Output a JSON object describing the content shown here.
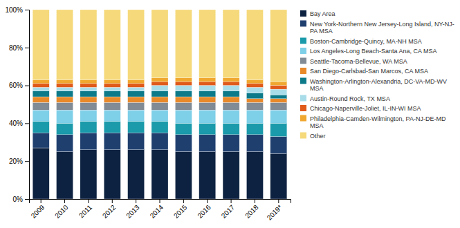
{
  "chart_data": {
    "type": "bar",
    "stacked": true,
    "grid": false,
    "legend": "right",
    "categories": [
      "2009",
      "2010",
      "2011",
      "2012",
      "2013",
      "2014",
      "2015",
      "2016",
      "2017",
      "2018",
      "2019*"
    ],
    "series": [
      {
        "name": "Bay Area",
        "color": "#0d2240",
        "values": [
          0.27,
          0.25,
          0.26,
          0.26,
          0.26,
          0.26,
          0.25,
          0.25,
          0.25,
          0.25,
          0.24
        ]
      },
      {
        "name": "New York-Northern New Jersey-Long Island, NY-NJ-\nPA MSA",
        "color": "#1f3f6e",
        "values": [
          0.08,
          0.09,
          0.09,
          0.09,
          0.09,
          0.09,
          0.09,
          0.09,
          0.09,
          0.09,
          0.09
        ]
      },
      {
        "name": "Boston-Cambridge-Quincy, MA-NH MSA",
        "color": "#1a9aaa",
        "values": [
          0.06,
          0.06,
          0.06,
          0.06,
          0.06,
          0.06,
          0.06,
          0.06,
          0.06,
          0.06,
          0.07
        ]
      },
      {
        "name": "Los Angeles-Long Beach-Santa Ana, CA MSA",
        "color": "#7ecfe8",
        "values": [
          0.06,
          0.07,
          0.06,
          0.06,
          0.06,
          0.06,
          0.07,
          0.07,
          0.07,
          0.07,
          0.07
        ]
      },
      {
        "name": "Seattle-Tacoma-Bellevue, WA MSA",
        "color": "#808b96",
        "values": [
          0.04,
          0.04,
          0.04,
          0.04,
          0.04,
          0.04,
          0.04,
          0.04,
          0.04,
          0.04,
          0.04
        ]
      },
      {
        "name": "San Diego-Carlsbad-San Marcos, CA MSA",
        "color": "#e8892a",
        "values": [
          0.03,
          0.03,
          0.03,
          0.03,
          0.03,
          0.03,
          0.03,
          0.03,
          0.03,
          0.02,
          0.02
        ]
      },
      {
        "name": "Washington-Arlington-Alexandria, DC-VA-MD-WV\nMSA",
        "color": "#0d7a8a",
        "values": [
          0.03,
          0.03,
          0.03,
          0.03,
          0.03,
          0.03,
          0.03,
          0.03,
          0.03,
          0.03,
          0.02
        ]
      },
      {
        "name": "Austin-Round Rock, TX MSA",
        "color": "#a8dce8",
        "values": [
          0.02,
          0.02,
          0.02,
          0.02,
          0.02,
          0.03,
          0.03,
          0.03,
          0.03,
          0.03,
          0.03
        ]
      },
      {
        "name": "Chicago-Naperville-Joliet, IL-IN-WI MSA",
        "color": "#e05a1a",
        "values": [
          0.02,
          0.02,
          0.02,
          0.02,
          0.02,
          0.02,
          0.02,
          0.02,
          0.02,
          0.02,
          0.02
        ]
      },
      {
        "name": "Philadelphia-Camden-Wilmington, PA-NJ-DE-MD\nMSA",
        "color": "#f0a830",
        "values": [
          0.02,
          0.02,
          0.02,
          0.02,
          0.02,
          0.02,
          0.02,
          0.02,
          0.02,
          0.02,
          0.02
        ]
      },
      {
        "name": "Other",
        "color": "#f5d97a",
        "values": [
          0.37,
          0.37,
          0.37,
          0.37,
          0.37,
          0.36,
          0.36,
          0.36,
          0.36,
          0.37,
          0.38
        ]
      }
    ],
    "ylim": [
      0,
      1.0
    ],
    "yticks": [
      {
        "value": 0,
        "label": "0%"
      },
      {
        "value": 0.2,
        "label": "20%"
      },
      {
        "value": 0.4,
        "label": "40%"
      },
      {
        "value": 0.6,
        "label": "60%"
      },
      {
        "value": 0.8,
        "label": "80%"
      },
      {
        "value": 1.0,
        "label": "100%"
      }
    ]
  }
}
